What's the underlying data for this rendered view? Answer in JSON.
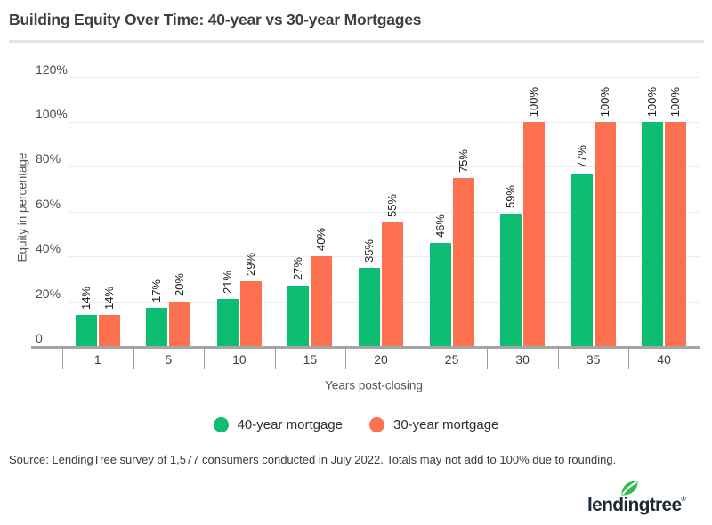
{
  "page": {
    "title": "Building Equity Over Time: 40-year vs 30-year Mortgages",
    "source_note": "Source: LendingTree survey of 1,577 consumers conducted in July 2022. Totals may not add to 100% due to rounding.",
    "logo_text": "lendingtree",
    "logo_registered": "®"
  },
  "colors": {
    "series_40yr_green": "#0dbe72",
    "series_30yr_orange": "#fd7151",
    "grid_gray": "#ededed",
    "axis_gray": "#a5a5a5",
    "title_text": "#3c4043",
    "logo_navy": "#1c2a38",
    "logo_leaf_green": "#2abf4f"
  },
  "chart_data": {
    "type": "bar",
    "title": "Building Equity Over Time: 40-year vs 30-year Mortgages",
    "categories": [
      "1",
      "5",
      "10",
      "15",
      "20",
      "25",
      "30",
      "35",
      "40"
    ],
    "series": [
      {
        "name": "40-year mortgage",
        "color": "#0dbe72",
        "values": [
          14,
          17,
          21,
          27,
          35,
          46,
          59,
          77,
          100
        ]
      },
      {
        "name": "30-year mortgage",
        "color": "#fd7151",
        "values": [
          14,
          20,
          29,
          40,
          55,
          75,
          100,
          100,
          100
        ]
      }
    ],
    "value_labels": [
      [
        "14%",
        "17%",
        "21%",
        "27%",
        "35%",
        "46%",
        "59%",
        "77%",
        "100%"
      ],
      [
        "14%",
        "20%",
        "29%",
        "40%",
        "55%",
        "75%",
        "100%",
        "100%",
        "100%"
      ]
    ],
    "xlabel": "Years post-closing",
    "ylabel": "Equity in percentage",
    "ylim": [
      0,
      120
    ],
    "ytick_step": 20,
    "ytick_labels": [
      "0",
      "20%",
      "40%",
      "60%",
      "80%",
      "100%",
      "120%"
    ],
    "grid": true,
    "legend_position": "bottom"
  }
}
